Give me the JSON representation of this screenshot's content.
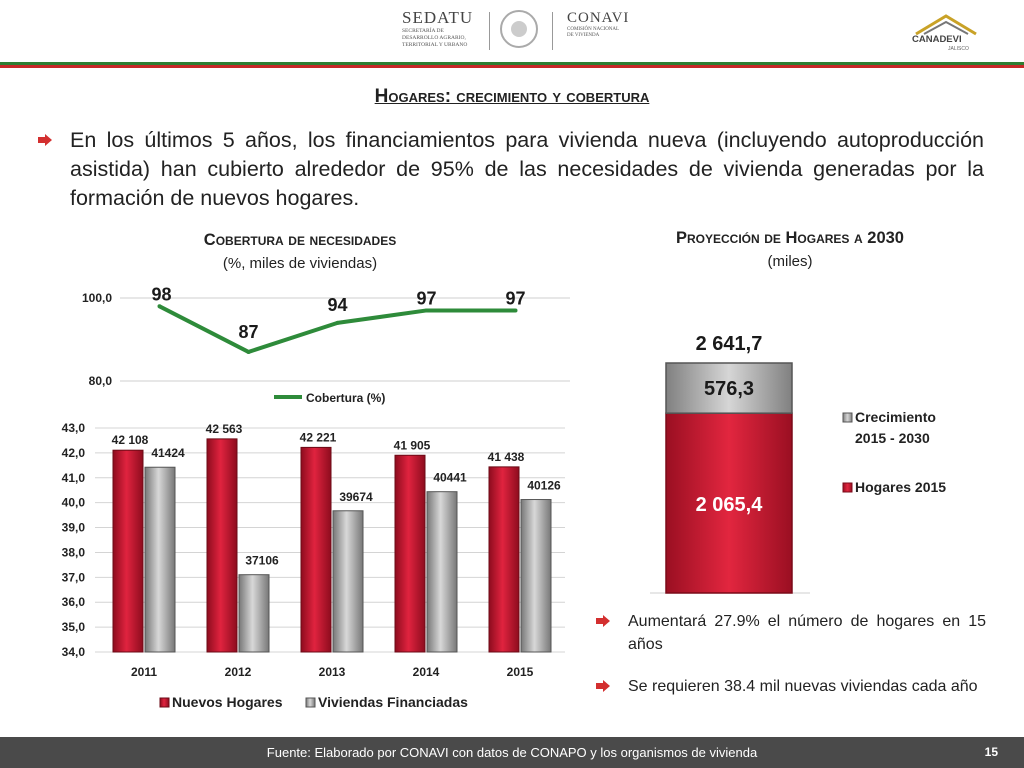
{
  "header": {
    "sedatu_name": "SEDATU",
    "sedatu_sub_1": "SECRETARÍA DE",
    "sedatu_sub_2": "DESARROLLO AGRARIO,",
    "sedatu_sub_3": "TERRITORIAL Y URBANO",
    "conavi_name": "CONAVI",
    "conavi_sub_1": "COMISIÓN NACIONAL",
    "conavi_sub_2": "DE VIVIENDA",
    "canadevi_name": "CANADEVI",
    "canadevi_sub": "JALISCO"
  },
  "slide": {
    "title": "Hogares: crecimiento y cobertura",
    "main_text": "En los últimos 5 años, los financiamientos para vivienda nueva (incluyendo autoproducción asistida) han cubierto alrededor de 95% de las necesidades de vivienda generadas por la formación de nuevos hogares.",
    "left_chart_title": "Cobertura de necesidades",
    "left_chart_subtitle": "(%, miles de viviendas)",
    "right_chart_title": "Proyección de Hogares a 2030",
    "right_chart_subtitle": "(miles)",
    "bullet_1": "Aumentará 27.9% el número de hogares en 15 años",
    "bullet_2": "Se requieren 38.4 mil nuevas viviendas cada año",
    "footer_source": "Fuente: Elaborado por CONAVI con datos de CONAPO y los organismos de vivienda",
    "page_number": "15"
  },
  "colors": {
    "accent_red": "#c62828",
    "accent_green": "#2e7d32",
    "line_green": "#2e8b3a",
    "bar_red": "#c8102e",
    "bar_gray": "#a6a6a6",
    "footer_bg": "#4a4a4a"
  },
  "icons": {
    "bullet": "red-arrow-icon"
  },
  "chart_data": [
    {
      "type": "line",
      "categories": [
        "2011",
        "2012",
        "2013",
        "2014",
        "2015"
      ],
      "series": [
        {
          "name": "Cobertura (%)",
          "values": [
            98,
            87,
            94,
            97,
            97
          ],
          "labels": [
            "98",
            "87",
            "94",
            "97",
            "97"
          ]
        }
      ],
      "yticks": [
        "100,0",
        "80,0"
      ],
      "ylim": [
        80,
        100
      ],
      "legend": "bottom-center"
    },
    {
      "type": "bar",
      "categories": [
        "2011",
        "2012",
        "2013",
        "2014",
        "2015"
      ],
      "series": [
        {
          "name": "Nuevos Hogares",
          "values": [
            42.108,
            42.563,
            42.221,
            41.905,
            41.438
          ],
          "labels": [
            "42 108",
            "42 563",
            "42 221",
            "41 905",
            "41 438"
          ]
        },
        {
          "name": "Viviendas Financiadas",
          "values": [
            41.424,
            37.106,
            39.674,
            40.441,
            40.126
          ],
          "labels": [
            "41424",
            "37106",
            "39674",
            "40441",
            "40126"
          ]
        }
      ],
      "ylim": [
        34,
        43
      ],
      "yticks": [
        "34,0",
        "35,0",
        "36,0",
        "37,0",
        "38,0",
        "39,0",
        "40,0",
        "41,0",
        "42,0",
        "43,0"
      ],
      "legend": "bottom-center",
      "grid": true
    },
    {
      "type": "bar",
      "stacked": true,
      "categories": [
        ""
      ],
      "series": [
        {
          "name": "Hogares 2015",
          "values": [
            2065.4
          ],
          "labels": [
            "2 065,4"
          ]
        },
        {
          "name": "Crecimiento 2015 - 2030",
          "values": [
            576.3
          ],
          "labels": [
            "576,3"
          ]
        }
      ],
      "total_label": "2 641,7",
      "total": 2641.7,
      "legend": "right"
    }
  ]
}
